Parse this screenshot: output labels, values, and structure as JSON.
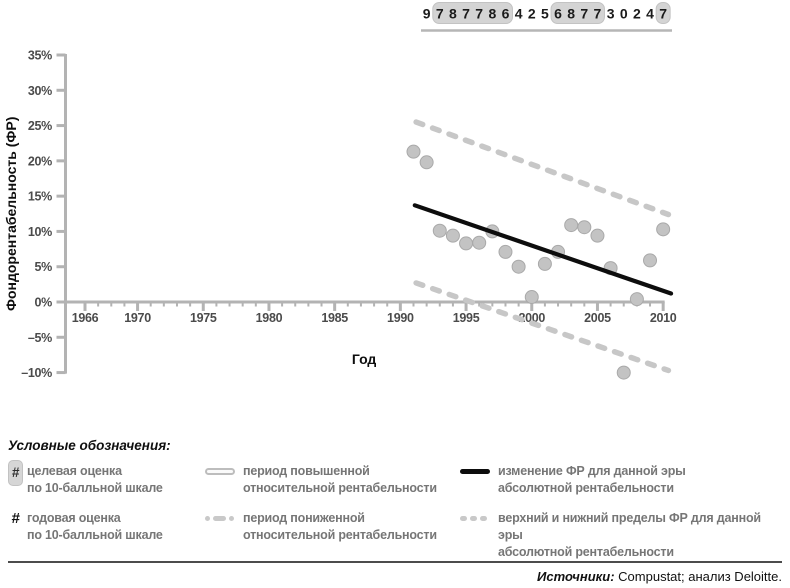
{
  "ratings": {
    "start_year": 1992,
    "digits": [
      {
        "v": "9",
        "boxed": false
      },
      {
        "v": "7",
        "boxed": true
      },
      {
        "v": "8",
        "boxed": true
      },
      {
        "v": "7",
        "boxed": true
      },
      {
        "v": "7",
        "boxed": true
      },
      {
        "v": "8",
        "boxed": true
      },
      {
        "v": "6",
        "boxed": true
      },
      {
        "v": "4",
        "boxed": false
      },
      {
        "v": "2",
        "boxed": false
      },
      {
        "v": "5",
        "boxed": false
      },
      {
        "v": "6",
        "boxed": true
      },
      {
        "v": "8",
        "boxed": true
      },
      {
        "v": "7",
        "boxed": true
      },
      {
        "v": "7",
        "boxed": true
      },
      {
        "v": "3",
        "boxed": false
      },
      {
        "v": "0",
        "boxed": false
      },
      {
        "v": "2",
        "boxed": false
      },
      {
        "v": "4",
        "boxed": false
      },
      {
        "v": "7",
        "boxed": true
      }
    ]
  },
  "chart_data": {
    "type": "scatter",
    "xlabel": "Год",
    "ylabel": "Фондорентабельность (ФР)",
    "xlim": [
      1964.5,
      2010.6
    ],
    "ylim": [
      -10,
      35
    ],
    "x_major_ticks": [
      1966,
      1970,
      1975,
      1980,
      1985,
      1990,
      1995,
      2000,
      2005,
      2010
    ],
    "x_minor_ticks_every_year_from": 1966,
    "x_minor_ticks_every_year_to": 2010,
    "y_ticks": [
      35,
      30,
      25,
      20,
      15,
      10,
      5,
      0,
      -5,
      -10
    ],
    "y_tick_labels": [
      "35%",
      "30%",
      "25%",
      "20%",
      "15%",
      "10%",
      "5%",
      "0%",
      "–5%",
      "–10%"
    ],
    "points": {
      "years": [
        1991,
        1992,
        1993,
        1994,
        1995,
        1996,
        1997,
        1998,
        1999,
        2000,
        2001,
        2002,
        2003,
        2004,
        2005,
        2006,
        2007,
        2008,
        2009,
        2010
      ],
      "values": [
        21.3,
        19.8,
        10.1,
        9.4,
        8.3,
        8.4,
        10.0,
        7.1,
        5.0,
        0.7,
        5.4,
        7.1,
        10.9,
        10.6,
        9.4,
        4.8,
        -10.0,
        0.4,
        5.9,
        10.3
      ]
    },
    "era_trend": {
      "x": [
        1991.1,
        2010.6
      ],
      "y": [
        13.7,
        1.2
      ]
    },
    "upper_bound": {
      "x": [
        1991.2,
        2010.4
      ],
      "y": [
        25.5,
        12.4
      ]
    },
    "lower_bound": {
      "x": [
        1991.2,
        2010.4
      ],
      "y": [
        2.7,
        -9.7
      ]
    }
  },
  "legend": {
    "title": "Условные обозначения:",
    "hash_symbol": "#",
    "items": [
      {
        "lines": [
          "целевая оценка",
          "по 10-балльной шкале"
        ]
      },
      {
        "lines": [
          "годовая оценка",
          "по 10-балльной шкале"
        ]
      },
      {
        "lines": [
          "период повышенной",
          "относительной рентабельности"
        ]
      },
      {
        "lines": [
          "период пониженной",
          "относительной рентабельности"
        ]
      },
      {
        "lines": [
          "изменение ФР для данной эры",
          "абсолютной рентабельности"
        ]
      },
      {
        "lines": [
          "верхний и нижний пределы ФР для данной эры",
          "абсолютной рентабельности"
        ]
      }
    ]
  },
  "source": {
    "label": "Источники:",
    "text": " Compustat; анализ Deloitte."
  },
  "colors": {
    "axis": "#b3b3b3",
    "tick_label": "#4b4b4b",
    "point_fill": "#c3c3c3",
    "point_edge": "#a9a9a9",
    "bound_line": "#c7c7c7",
    "trend_line": "#0d0d0d",
    "rating_box": "#d4d4d4",
    "rating_box_edge": "#c3c3c3",
    "digit": "#1b1b1b",
    "underline": "#b6b6b6"
  }
}
